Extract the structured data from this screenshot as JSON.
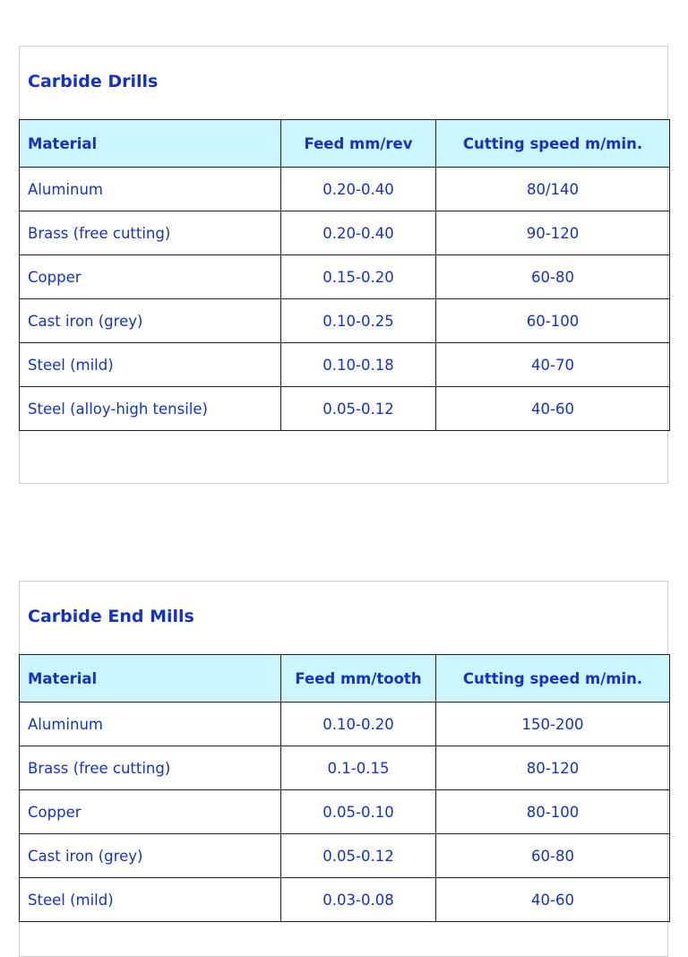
{
  "sections": [
    {
      "title": "Carbide Drills",
      "headers": [
        "Material",
        "Feed mm/rev",
        "Cutting speed m/min."
      ],
      "rows": [
        [
          "Aluminum",
          "0.20-0.40",
          "80/140"
        ],
        [
          "Brass (free cutting)",
          "0.20-0.40",
          "90-120"
        ],
        [
          "Copper",
          "0.15-0.20",
          "60-80"
        ],
        [
          "Cast iron (grey)",
          "0.10-0.25",
          "60-100"
        ],
        [
          "Steel (mild)",
          "0.10-0.18",
          "40-70"
        ],
        [
          "Steel (alloy-high tensile)",
          "0.05-0.12",
          "40-60"
        ]
      ]
    },
    {
      "title": "Carbide End Mills",
      "headers": [
        "Material",
        "Feed mm/tooth",
        "Cutting speed m/min."
      ],
      "rows": [
        [
          "Aluminum",
          "0.10-0.20",
          "150-200"
        ],
        [
          "Brass (free cutting)",
          "0.1-0.15",
          "80-120"
        ],
        [
          "Copper",
          "0.05-0.10",
          "80-100"
        ],
        [
          "Cast iron (grey)",
          "0.05-0.12",
          "60-80"
        ],
        [
          "Steel (mild)",
          "0.03-0.08",
          "40-60"
        ]
      ]
    }
  ],
  "colors": {
    "text": "#1432c8",
    "header_bg": "#ccf6ff",
    "border": "#222222"
  }
}
